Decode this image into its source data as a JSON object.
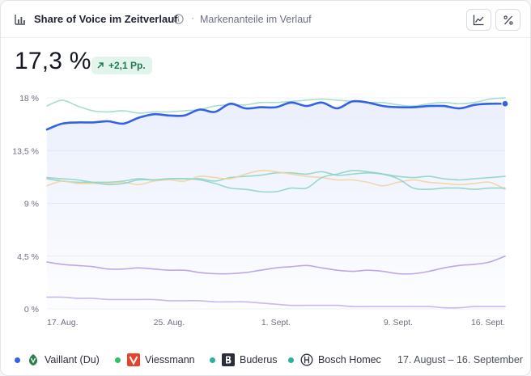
{
  "header": {
    "title": "Share of Voice im Zeitverlauf",
    "separator": "·",
    "subtitle": "Markenanteile im Verlauf",
    "icons": [
      "bar-chart-icon",
      "info-icon",
      "line-chart-icon",
      "percent-icon"
    ]
  },
  "kpi": {
    "value": "17,3 %",
    "delta": "+2,1 Pp."
  },
  "legend": {
    "items": [
      {
        "label": "Vaillant (Du)",
        "dot_color": "#3462e6",
        "logo": "vaillant-logo"
      },
      {
        "label": "Viessmann",
        "dot_color": "#2fbf6a",
        "logo": "viessmann-logo"
      },
      {
        "label": "Buderus",
        "dot_color": "#27b39a",
        "logo": "buderus-logo"
      },
      {
        "label": "Bosch Homec",
        "dot_color": "#27b39a",
        "logo": "bosch-logo"
      }
    ],
    "period": "17. August – 16. September"
  },
  "colors": {
    "vaillant": "#3462e6",
    "viessmann": "#9fdcc2",
    "buderus": "#8fd4c8",
    "bosch": "#f0d4a3",
    "purple_a": "#b79ce8",
    "purple_b": "#c4aef0"
  },
  "chart_data": {
    "type": "line",
    "ylim": [
      0,
      18
    ],
    "yticks": [
      "18 %",
      "13,5 %",
      "9 %",
      "4,5 %",
      "0 %"
    ],
    "ytick_values": [
      18,
      13.5,
      9,
      4.5,
      0
    ],
    "xticks": [
      "17. Aug.",
      "25. Aug.",
      "1. Sept.",
      "9. Sept.",
      "16. Sept."
    ],
    "xtick_index": [
      0,
      8,
      15,
      23,
      30
    ],
    "x": [
      "17.08",
      "18.08",
      "19.08",
      "20.08",
      "21.08",
      "22.08",
      "23.08",
      "24.08",
      "25.08",
      "26.08",
      "27.08",
      "28.08",
      "29.08",
      "30.08",
      "31.08",
      "01.09",
      "02.09",
      "03.09",
      "04.09",
      "05.09",
      "06.09",
      "07.09",
      "08.09",
      "09.09",
      "10.09",
      "11.09",
      "12.09",
      "13.09",
      "14.09",
      "15.09",
      "16.09"
    ],
    "series": [
      {
        "name": "Vaillant (Du)",
        "key": "vaillant",
        "highlight": true,
        "values": [
          15.3,
          15.8,
          15.9,
          15.9,
          16.0,
          15.8,
          16.3,
          16.6,
          16.5,
          16.5,
          17.0,
          16.8,
          17.5,
          17.1,
          17.2,
          17.2,
          17.6,
          17.3,
          17.6,
          17.1,
          17.7,
          17.6,
          17.3,
          17.2,
          17.2,
          17.3,
          17.3,
          17.1,
          17.4,
          17.5,
          17.5
        ]
      },
      {
        "name": "Viessmann",
        "key": "viessmann",
        "values": [
          17.3,
          17.8,
          17.3,
          16.9,
          16.8,
          16.9,
          16.7,
          16.8,
          16.8,
          16.9,
          17.0,
          17.3,
          17.4,
          17.4,
          17.6,
          17.6,
          17.7,
          17.8,
          17.9,
          17.8,
          17.7,
          17.6,
          17.6,
          17.4,
          17.3,
          17.5,
          17.6,
          17.5,
          17.6,
          17.9,
          18.0
        ]
      },
      {
        "name": "Buderus",
        "key": "buderus",
        "values": [
          11.1,
          10.9,
          10.8,
          10.8,
          10.8,
          10.9,
          11.1,
          11.0,
          11.1,
          11.1,
          11.1,
          10.9,
          11.2,
          11.3,
          11.4,
          11.6,
          11.6,
          11.5,
          11.7,
          11.4,
          11.5,
          11.6,
          11.5,
          11.3,
          11.2,
          11.3,
          11.1,
          11.0,
          11.1,
          11.2,
          11.3
        ]
      },
      {
        "name": "Bosch Homec",
        "key": "bosch",
        "values": [
          10.5,
          10.9,
          10.7,
          10.7,
          10.7,
          10.8,
          10.6,
          10.9,
          11.0,
          10.9,
          11.3,
          11.2,
          11.1,
          11.5,
          11.8,
          11.7,
          11.5,
          11.3,
          11.2,
          11.0,
          11.0,
          10.8,
          10.5,
          10.8,
          11.0,
          10.8,
          10.7,
          10.6,
          10.7,
          10.8,
          10.2
        ]
      },
      {
        "name": "",
        "key": "teal2",
        "values": [
          11.2,
          11.1,
          11.0,
          10.8,
          10.6,
          10.7,
          11.0,
          11.0,
          11.1,
          11.1,
          11.0,
          10.7,
          10.3,
          10.2,
          10.0,
          10.0,
          10.3,
          10.3,
          11.2,
          11.5,
          11.8,
          11.7,
          11.5,
          11.1,
          10.3,
          10.2,
          10.3,
          10.3,
          10.2,
          10.3,
          10.3
        ]
      },
      {
        "name": "",
        "key": "purple_a",
        "values": [
          4.0,
          3.8,
          3.7,
          3.6,
          3.4,
          3.4,
          3.5,
          3.4,
          3.3,
          3.3,
          3.1,
          3.0,
          3.0,
          3.1,
          3.3,
          3.5,
          3.6,
          3.7,
          3.5,
          3.3,
          3.2,
          3.3,
          3.2,
          3.0,
          3.0,
          3.2,
          3.5,
          3.7,
          3.8,
          4.0,
          4.5
        ]
      },
      {
        "name": "",
        "key": "purple_b",
        "values": [
          1.0,
          1.0,
          0.9,
          0.9,
          0.8,
          0.8,
          0.8,
          0.8,
          0.7,
          0.7,
          0.7,
          0.6,
          0.6,
          0.6,
          0.5,
          0.4,
          0.3,
          0.3,
          0.3,
          0.3,
          0.2,
          0.2,
          0.2,
          0.2,
          0.2,
          0.2,
          0.1,
          0.1,
          0.2,
          0.2,
          0.2
        ]
      }
    ],
    "end_marker": {
      "series": "Vaillant (Du)",
      "value": 17.5
    }
  }
}
